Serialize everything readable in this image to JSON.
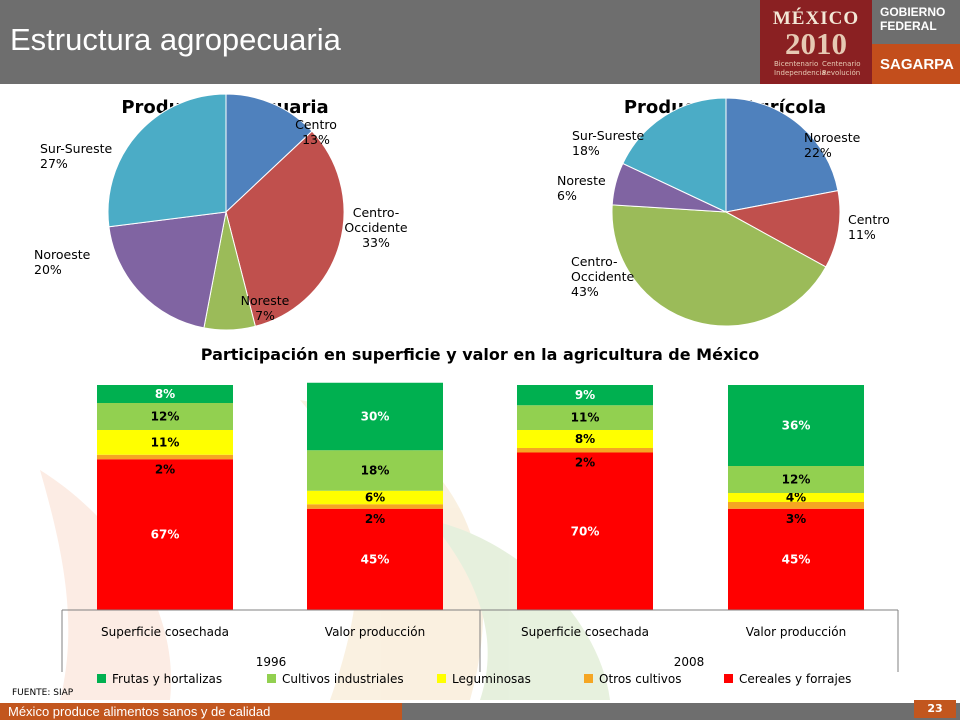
{
  "header": {
    "title": "Estructura agropecuaria",
    "logo": {
      "mexico": "MÉXICO",
      "year": "2010",
      "sub_left": "Bicentenario Independencia",
      "sub_right": "Centenario Revolución"
    },
    "gobierno": "GOBIERNO FEDERAL",
    "sagarpa": "SAGARPA"
  },
  "chart_data": [
    {
      "type": "pie",
      "title": "Producción Pecuaria",
      "labels": [
        "Centro",
        "Centro-Occidente",
        "Noreste",
        "Noroeste",
        "Sur-Sureste"
      ],
      "values": [
        13,
        33,
        7,
        20,
        27
      ],
      "colors": [
        "#4f81bd",
        "#c0504d",
        "#9bbb59",
        "#8064a2",
        "#4bacc6"
      ]
    },
    {
      "type": "pie",
      "title": "Producción Agrícola",
      "labels": [
        "Noroeste",
        "Centro",
        "Centro-Occidente",
        "Noreste",
        "Sur-Sureste"
      ],
      "values": [
        22,
        11,
        43,
        6,
        18
      ],
      "colors": [
        "#4f81bd",
        "#c0504d",
        "#9bbb59",
        "#8064a2",
        "#4bacc6"
      ]
    },
    {
      "type": "bar",
      "stacked": true,
      "title": "Participación en superficie y valor en la agricultura de México",
      "categories": [
        "Superficie cosechada",
        "Valor producción",
        "Superficie cosechada",
        "Valor producción"
      ],
      "groups": [
        "1996",
        "2008"
      ],
      "series": [
        {
          "name": "Cereales y forrajes",
          "color": "#ff0000",
          "values": [
            67,
            45,
            70,
            45
          ]
        },
        {
          "name": "Otros cultivos",
          "color": "#f5a623",
          "values": [
            2,
            2,
            2,
            3
          ]
        },
        {
          "name": "Leguminosas",
          "color": "#ffff00",
          "values": [
            11,
            6,
            8,
            4
          ]
        },
        {
          "name": "Cultivos industriales",
          "color": "#92d050",
          "values": [
            12,
            18,
            11,
            12
          ]
        },
        {
          "name": "Frutas y hortalizas",
          "color": "#00b050",
          "values": [
            8,
            30,
            9,
            36
          ]
        }
      ],
      "legend_order": [
        "Frutas y hortalizas",
        "Cultivos industriales",
        "Leguminosas",
        "Otros cultivos",
        "Cereales y forrajes"
      ],
      "legend_position": "bottom"
    }
  ],
  "source": "FUENTE: SIAP",
  "footer": {
    "text": "México produce alimentos sanos y de calidad",
    "page": "23"
  }
}
